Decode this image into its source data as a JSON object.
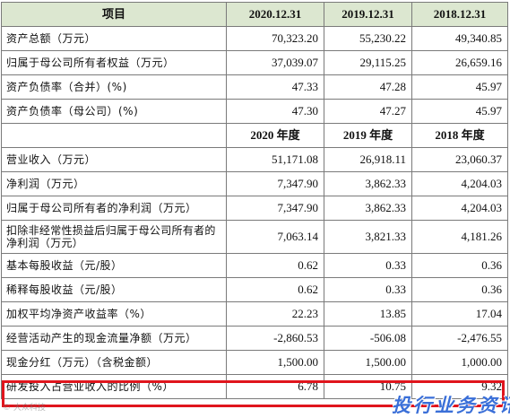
{
  "header": {
    "item_label": "项目",
    "col1": "2020.12.31",
    "col2": "2019.12.31",
    "col3": "2018.12.31"
  },
  "balance_rows": [
    {
      "label": "资产总额（万元）",
      "v2020": "70,323.20",
      "v2019": "55,230.22",
      "v2018": "49,340.85"
    },
    {
      "label": "归属于母公司所有者权益（万元）",
      "v2020": "37,039.07",
      "v2019": "29,115.25",
      "v2018": "26,659.16"
    },
    {
      "label": "资产负债率（合并）(%)",
      "v2020": "47.33",
      "v2019": "47.28",
      "v2018": "45.97"
    },
    {
      "label": "资产负债率（母公司）(%)",
      "v2020": "47.30",
      "v2019": "47.27",
      "v2018": "45.97"
    }
  ],
  "subheader": {
    "col1": "2020 年度",
    "col2": "2019 年度",
    "col3": "2018 年度"
  },
  "income_rows": [
    {
      "label": "营业收入（万元）",
      "v2020": "51,171.08",
      "v2019": "26,918.11",
      "v2018": "23,060.37"
    },
    {
      "label": "净利润（万元）",
      "v2020": "7,347.90",
      "v2019": "3,862.33",
      "v2018": "4,204.03"
    },
    {
      "label": "归属于母公司所有者的净利润（万元）",
      "v2020": "7,347.90",
      "v2019": "3,862.33",
      "v2018": "4,204.03"
    },
    {
      "label": "扣除非经常性损益后归属于母公司所有者的净利润（万元）",
      "v2020": "7,063.14",
      "v2019": "3,821.33",
      "v2018": "4,181.26"
    },
    {
      "label": "基本每股收益（元/股）",
      "v2020": "0.62",
      "v2019": "0.33",
      "v2018": "0.36"
    },
    {
      "label": "稀释每股收益（元/股）",
      "v2020": "0.62",
      "v2019": "0.33",
      "v2018": "0.36"
    },
    {
      "label": "加权平均净资产收益率（%）",
      "v2020": "22.23",
      "v2019": "13.85",
      "v2018": "17.04"
    },
    {
      "label": "经营活动产生的现金流量净额（万元）",
      "v2020": "-2,860.53",
      "v2019": "-506.08",
      "v2018": "-2,476.55"
    },
    {
      "label": "现金分红（万元）（含税金额）",
      "v2020": "1,500.00",
      "v2019": "1,500.00",
      "v2018": "1,000.00"
    },
    {
      "label": "研发投入占营业收入的比例（%）",
      "v2020": "6.78",
      "v2019": "10.75",
      "v2018": "9.32"
    }
  ],
  "watermark": {
    "logo_text": "© 大众科技",
    "overlay_text": "投行业务资讯"
  },
  "colors": {
    "header_bg": "#dce7d0",
    "highlight_border": "#e0151d",
    "watermark_text": "#3a6fd8"
  }
}
